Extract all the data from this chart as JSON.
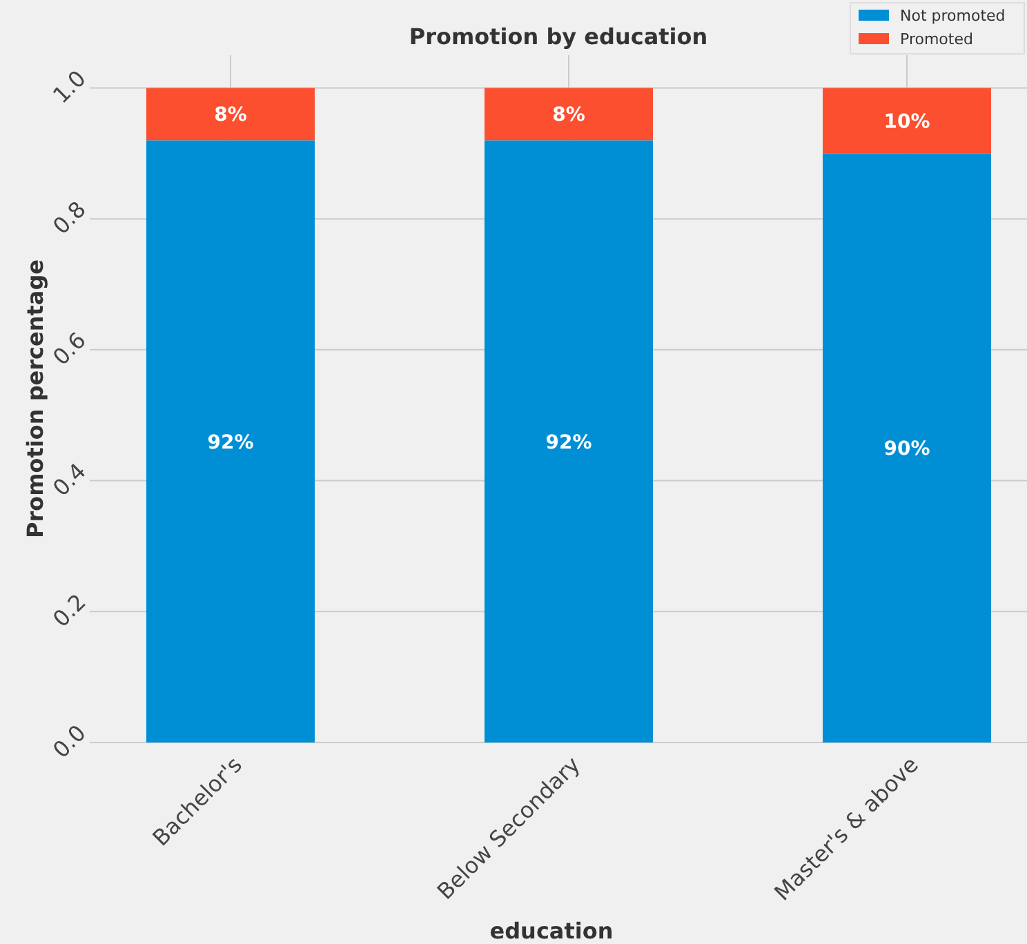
{
  "chart_data": {
    "type": "bar",
    "stacked": true,
    "title": "Promotion by education",
    "xlabel": "education",
    "ylabel": "Promotion percentage",
    "categories": [
      "Bachelor's",
      "Below Secondary",
      "Master's & above"
    ],
    "series": [
      {
        "name": "Not promoted",
        "color": "#008fd5",
        "values": [
          0.92,
          0.92,
          0.9
        ],
        "value_labels": [
          "92%",
          "92%",
          "90%"
        ]
      },
      {
        "name": "Promoted",
        "color": "#fc4f30",
        "values": [
          0.08,
          0.08,
          0.1
        ],
        "value_labels": [
          "8%",
          "8%",
          "10%"
        ]
      }
    ],
    "ylim": [
      0,
      1.05
    ],
    "yticks": [
      {
        "value": 0,
        "label": "0.0"
      },
      {
        "value": 0.2,
        "label": "0.2"
      },
      {
        "value": 0.4,
        "label": "0.4"
      },
      {
        "value": 0.6,
        "label": "0.6"
      },
      {
        "value": 0.8,
        "label": "0.8"
      },
      {
        "value": 1,
        "label": "1.0"
      }
    ],
    "grid": true,
    "legend": "top right"
  }
}
